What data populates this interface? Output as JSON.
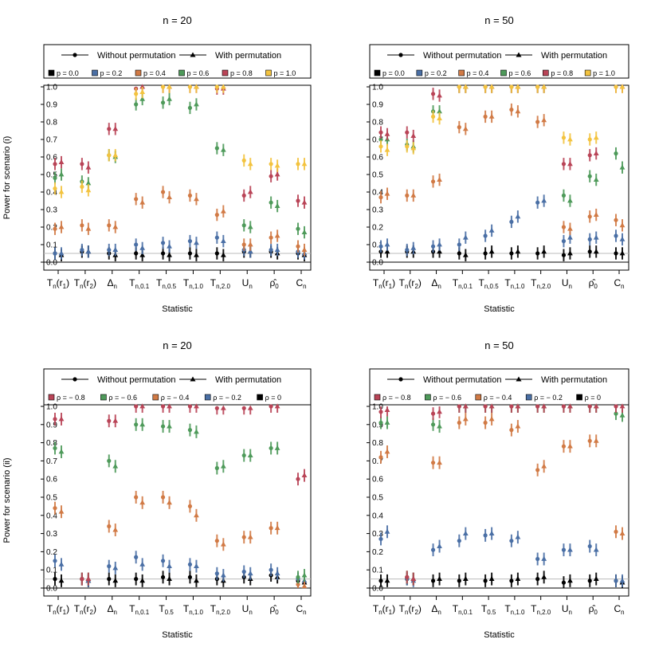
{
  "figure": {
    "xlabel": "Statistic",
    "legend": {
      "without": "Without permutation",
      "with": "With permutation"
    }
  },
  "chart_data": [
    {
      "type": "scatter",
      "title": "n = 20",
      "xlabel": "Statistic",
      "ylabel": "Power for scenario (i)",
      "ylim": [
        0,
        1
      ],
      "yticks": [
        "0.0",
        "0.1",
        "0.2",
        "0.3",
        "0.4",
        "0.5",
        "0.6",
        "0.7",
        "0.8",
        "0.9",
        "1.0"
      ],
      "categories": [
        {
          "base": "T",
          "sub": "n",
          "paren": "r",
          "psub": "1"
        },
        {
          "base": "T",
          "sub": "n",
          "paren": "r",
          "psub": "2"
        },
        {
          "base": "Δ",
          "sub": "n"
        },
        {
          "base": "T",
          "sub": "n,0.1"
        },
        {
          "base": "T",
          "sub": "n,0.5"
        },
        {
          "base": "T",
          "sub": "n,1.0"
        },
        {
          "base": "T",
          "sub": "n,2.0"
        },
        {
          "base": "U",
          "sub": "n"
        },
        {
          "base": "ρ̂",
          "sub": "0"
        },
        {
          "base": "C",
          "sub": "n"
        }
      ],
      "legend_series": [
        "p = 0.0",
        "p = 0.2",
        "p = 0.4",
        "p = 0.6",
        "p = 0.8",
        "p = 1.0"
      ],
      "series": [
        {
          "name": "p = 0.0",
          "color": "#000000",
          "without": [
            0.05,
            0.06,
            0.05,
            0.05,
            0.05,
            0.05,
            0.05,
            0.06,
            0.06,
            0.05
          ],
          "with": [
            0.04,
            0.06,
            0.04,
            0.04,
            0.04,
            0.04,
            0.04,
            0.06,
            0.05,
            0.04
          ]
        },
        {
          "name": "p = 0.2",
          "color": "#4a6fa5",
          "without": [
            0.05,
            0.07,
            0.07,
            0.1,
            0.11,
            0.12,
            0.14,
            0.07,
            0.07,
            0.06
          ],
          "with": [
            0.05,
            0.06,
            0.07,
            0.08,
            0.09,
            0.11,
            0.12,
            0.06,
            0.07,
            0.05
          ]
        },
        {
          "name": "p = 0.4",
          "color": "#d17a45",
          "without": [
            0.19,
            0.21,
            0.21,
            0.36,
            0.4,
            0.38,
            0.27,
            0.1,
            0.14,
            0.09
          ],
          "with": [
            0.2,
            0.19,
            0.2,
            0.34,
            0.37,
            0.36,
            0.29,
            0.1,
            0.15,
            0.07
          ]
        },
        {
          "name": "p = 0.6",
          "color": "#4e9a5a",
          "without": [
            0.48,
            0.46,
            0.61,
            0.9,
            0.91,
            0.88,
            0.65,
            0.21,
            0.34,
            0.19
          ],
          "with": [
            0.5,
            0.45,
            0.6,
            0.93,
            0.93,
            0.9,
            0.64,
            0.2,
            0.32,
            0.17
          ]
        },
        {
          "name": "p = 0.8",
          "color": "#b94457",
          "without": [
            0.56,
            0.56,
            0.76,
            0.99,
            1.0,
            1.0,
            0.99,
            0.38,
            0.49,
            0.35
          ],
          "with": [
            0.57,
            0.54,
            0.76,
            1.0,
            1.0,
            1.0,
            0.99,
            0.4,
            0.5,
            0.34
          ]
        },
        {
          "name": "p = 1.0",
          "color": "#f3c33f",
          "without": [
            0.42,
            0.43,
            0.61,
            0.96,
            1.0,
            1.0,
            1.0,
            0.58,
            0.56,
            0.56
          ],
          "with": [
            0.4,
            0.41,
            0.61,
            0.97,
            1.0,
            1.0,
            1.0,
            0.56,
            0.55,
            0.56
          ]
        }
      ]
    },
    {
      "type": "scatter",
      "title": "n = 50",
      "xlabel": "Statistic",
      "ylabel": "",
      "ylim": [
        0,
        1
      ],
      "yticks": [
        "0.0",
        "0.1",
        "0.2",
        "0.3",
        "0.4",
        "0.5",
        "0.6",
        "0.7",
        "0.8",
        "0.9",
        "1.0"
      ],
      "categories": [
        {
          "base": "T",
          "sub": "n",
          "paren": "r",
          "psub": "1"
        },
        {
          "base": "T",
          "sub": "n",
          "paren": "r",
          "psub": "2"
        },
        {
          "base": "Δ",
          "sub": "n"
        },
        {
          "base": "T",
          "sub": "n,0.1"
        },
        {
          "base": "T",
          "sub": "n,0.5"
        },
        {
          "base": "T",
          "sub": "n,1.0"
        },
        {
          "base": "T",
          "sub": "n,2.0"
        },
        {
          "base": "U",
          "sub": "n"
        },
        {
          "base": "ρ̂",
          "sub": "0"
        },
        {
          "base": "C",
          "sub": "n"
        }
      ],
      "legend_series": [
        "p = 0.0",
        "p = 0.2",
        "p = 0.4",
        "p = 0.6",
        "p = 0.8",
        "p = 1.0"
      ],
      "series": [
        {
          "name": "p = 0.0",
          "color": "#000000",
          "without": [
            0.06,
            0.06,
            0.06,
            0.05,
            0.05,
            0.05,
            0.05,
            0.04,
            0.06,
            0.05
          ],
          "with": [
            0.06,
            0.06,
            0.06,
            0.04,
            0.06,
            0.06,
            0.06,
            0.05,
            0.06,
            0.05
          ]
        },
        {
          "name": "p = 0.2",
          "color": "#4a6fa5",
          "without": [
            0.09,
            0.07,
            0.09,
            0.1,
            0.15,
            0.23,
            0.34,
            0.12,
            0.13,
            0.15
          ],
          "with": [
            0.1,
            0.08,
            0.1,
            0.14,
            0.18,
            0.26,
            0.35,
            0.14,
            0.14,
            0.13
          ]
        },
        {
          "name": "p = 0.4",
          "color": "#d17a45",
          "without": [
            0.37,
            0.38,
            0.46,
            0.77,
            0.83,
            0.87,
            0.8,
            0.2,
            0.26,
            0.24
          ],
          "with": [
            0.39,
            0.38,
            0.47,
            0.76,
            0.83,
            0.86,
            0.81,
            0.19,
            0.27,
            0.21
          ]
        },
        {
          "name": "p = 0.6",
          "color": "#4e9a5a",
          "without": [
            0.7,
            0.67,
            0.86,
            1.0,
            1.0,
            1.0,
            1.0,
            0.38,
            0.49,
            0.62
          ],
          "with": [
            0.7,
            0.66,
            0.86,
            1.0,
            1.0,
            1.0,
            1.0,
            0.35,
            0.47,
            0.54
          ]
        },
        {
          "name": "p = 0.8",
          "color": "#b94457",
          "without": [
            0.74,
            0.74,
            0.96,
            1.0,
            1.0,
            1.0,
            1.0,
            0.56,
            0.61,
            1.0
          ],
          "with": [
            0.73,
            0.72,
            0.95,
            1.0,
            1.0,
            1.0,
            1.0,
            0.56,
            0.62,
            1.0
          ]
        },
        {
          "name": "p = 1.0",
          "color": "#f3c33f",
          "without": [
            0.66,
            0.66,
            0.83,
            1.0,
            1.0,
            1.0,
            1.0,
            0.71,
            0.7,
            1.0
          ],
          "with": [
            0.64,
            0.65,
            0.82,
            1.0,
            1.0,
            1.0,
            1.0,
            0.7,
            0.71,
            1.0
          ]
        }
      ]
    },
    {
      "type": "scatter",
      "title": "n = 20",
      "xlabel": "Statistic",
      "ylabel": "Power for scenario (ii)",
      "ylim": [
        0,
        1
      ],
      "yticks": [
        "0.0",
        "0.1",
        "0.2",
        "0.3",
        "0.4",
        "0.5",
        "0.6",
        "0.7",
        "0.8",
        "0.9",
        "1.0"
      ],
      "categories": [
        {
          "base": "T",
          "sub": "n",
          "paren": "r",
          "psub": "1"
        },
        {
          "base": "T",
          "sub": "n",
          "paren": "r",
          "psub": "2"
        },
        {
          "base": "Δ",
          "sub": "n"
        },
        {
          "base": "T",
          "sub": "n,0.1"
        },
        {
          "base": "T",
          "sub": "0.5"
        },
        {
          "base": "T",
          "sub": "n,1.0"
        },
        {
          "base": "T",
          "sub": "n,2.0"
        },
        {
          "base": "U",
          "sub": "n"
        },
        {
          "base": "ρ̂",
          "sub": "0"
        },
        {
          "base": "C",
          "sub": "n"
        }
      ],
      "legend_series": [
        "ρ = − 0.8",
        "ρ = − 0.6",
        "ρ = − 0.4",
        "ρ = − 0.2",
        "ρ = 0"
      ],
      "series": [
        {
          "name": "ρ = 0",
          "color": "#000000",
          "without": [
            0.05,
            0.05,
            0.05,
            0.05,
            0.06,
            0.06,
            0.05,
            0.06,
            0.07,
            0.04
          ],
          "with": [
            0.04,
            0.04,
            0.04,
            0.04,
            0.05,
            0.04,
            0.04,
            0.05,
            0.06,
            0.03
          ]
        },
        {
          "name": "ρ = − 0.2",
          "color": "#4a6fa5",
          "without": [
            0.15,
            0.05,
            0.12,
            0.17,
            0.15,
            0.13,
            0.08,
            0.09,
            0.1,
            0.05
          ],
          "with": [
            0.13,
            0.04,
            0.11,
            0.13,
            0.12,
            0.12,
            0.07,
            0.08,
            0.08,
            0.04
          ]
        },
        {
          "name": "ρ = − 0.4",
          "color": "#d17a45",
          "without": [
            0.44,
            0.05,
            0.34,
            0.5,
            0.5,
            0.45,
            0.26,
            0.28,
            0.33,
            0.02
          ],
          "with": [
            0.42,
            0.05,
            0.32,
            0.47,
            0.47,
            0.4,
            0.24,
            0.28,
            0.33,
            0.01
          ]
        },
        {
          "name": "ρ = − 0.6",
          "color": "#4e9a5a",
          "without": [
            0.77,
            0.05,
            0.7,
            0.9,
            0.89,
            0.87,
            0.66,
            0.73,
            0.77,
            0.06
          ],
          "with": [
            0.75,
            0.05,
            0.67,
            0.9,
            0.89,
            0.86,
            0.67,
            0.73,
            0.77,
            0.07
          ]
        },
        {
          "name": "ρ = − 0.8",
          "color": "#b94457",
          "without": [
            0.93,
            0.05,
            0.92,
            1.0,
            1.0,
            1.0,
            0.99,
            0.99,
            1.0,
            0.6
          ],
          "with": [
            0.93,
            0.05,
            0.92,
            1.0,
            1.0,
            1.0,
            0.99,
            0.99,
            1.0,
            0.62
          ]
        }
      ]
    },
    {
      "type": "scatter",
      "title": "n = 50",
      "xlabel": "Statistic",
      "ylabel": "",
      "ylim": [
        0,
        1
      ],
      "yticks": [
        "0.0",
        "0.1",
        "0.2",
        "0.3",
        "0.4",
        "0.5",
        "0.6",
        "0.7",
        "0.8",
        "0.9",
        "1.0"
      ],
      "categories": [
        {
          "base": "T",
          "sub": "n",
          "paren": "r",
          "psub": "1"
        },
        {
          "base": "T",
          "sub": "n",
          "paren": "r",
          "psub": "2"
        },
        {
          "base": "Δ",
          "sub": "n"
        },
        {
          "base": "T",
          "sub": "n,0.1"
        },
        {
          "base": "T",
          "sub": "0.5"
        },
        {
          "base": "T",
          "sub": "n,1.0"
        },
        {
          "base": "T",
          "sub": "n,2.0"
        },
        {
          "base": "U",
          "sub": "n"
        },
        {
          "base": "ρ̂",
          "sub": "0"
        },
        {
          "base": "C",
          "sub": "n"
        }
      ],
      "legend_series": [
        "ρ = − 0.8",
        "ρ = − 0.6",
        "ρ = − 0.4",
        "ρ = − 0.2",
        "ρ = 0"
      ],
      "series": [
        {
          "name": "ρ = 0",
          "color": "#000000",
          "without": [
            0.04,
            0.05,
            0.04,
            0.04,
            0.04,
            0.04,
            0.05,
            0.03,
            0.04,
            0.04
          ],
          "with": [
            0.04,
            0.05,
            0.05,
            0.05,
            0.05,
            0.05,
            0.06,
            0.04,
            0.05,
            0.03
          ]
        },
        {
          "name": "ρ = − 0.2",
          "color": "#4a6fa5",
          "without": [
            0.27,
            0.05,
            0.21,
            0.26,
            0.29,
            0.26,
            0.16,
            0.21,
            0.23,
            0.04
          ],
          "with": [
            0.31,
            0.04,
            0.23,
            0.3,
            0.3,
            0.28,
            0.16,
            0.21,
            0.21,
            0.04
          ]
        },
        {
          "name": "ρ = − 0.4",
          "color": "#d17a45",
          "without": [
            0.72,
            0.06,
            0.69,
            0.91,
            0.91,
            0.87,
            0.65,
            0.78,
            0.81,
            0.31
          ],
          "with": [
            0.75,
            0.05,
            0.69,
            0.93,
            0.93,
            0.89,
            0.67,
            0.78,
            0.81,
            0.3
          ]
        },
        {
          "name": "ρ = − 0.6",
          "color": "#4e9a5a",
          "without": [
            0.91,
            0.06,
            0.9,
            1.0,
            1.0,
            1.0,
            1.0,
            1.0,
            1.0,
            0.96
          ],
          "with": [
            0.91,
            0.05,
            0.89,
            1.0,
            1.0,
            1.0,
            1.0,
            1.0,
            1.0,
            0.95
          ]
        },
        {
          "name": "ρ = − 0.8",
          "color": "#b94457",
          "without": [
            0.97,
            0.06,
            0.96,
            1.0,
            1.0,
            1.0,
            1.0,
            1.0,
            1.0,
            1.0
          ],
          "with": [
            0.98,
            0.05,
            0.97,
            1.0,
            1.0,
            1.0,
            1.0,
            1.0,
            1.0,
            1.0
          ]
        }
      ]
    }
  ]
}
